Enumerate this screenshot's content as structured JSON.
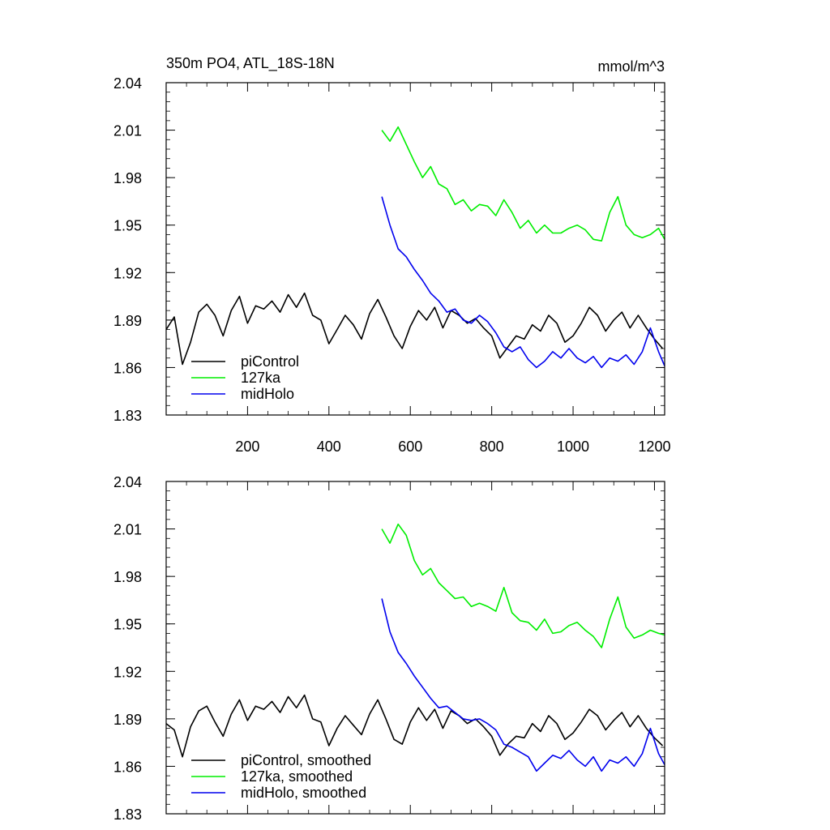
{
  "colors": {
    "piControl": "#000000",
    "127ka": "#00ee00",
    "midHolo": "#0000ee"
  },
  "chart_data": [
    {
      "type": "line",
      "title": "350m PO4, ATL_18S-18N",
      "units_label": "mmol/m^3",
      "xlim": [
        0,
        1225
      ],
      "ylim": [
        1.83,
        2.04
      ],
      "xticks": [
        200,
        400,
        600,
        800,
        1000,
        1200
      ],
      "xtick_labels": [
        "200",
        "400",
        "600",
        "800",
        "1000",
        "1200"
      ],
      "yticks": [
        1.83,
        1.86,
        1.89,
        1.92,
        1.95,
        1.98,
        2.01,
        2.04
      ],
      "ytick_labels": [
        "1.83",
        "1.86",
        "1.89",
        "1.92",
        "1.95",
        "1.98",
        "2.01",
        "2.04"
      ],
      "grid": false,
      "legend_position": "bottom-left",
      "series": [
        {
          "name": "piControl",
          "color_key": "piControl",
          "x": [
            0,
            20,
            40,
            60,
            80,
            100,
            120,
            140,
            160,
            180,
            200,
            220,
            240,
            260,
            280,
            300,
            320,
            340,
            360,
            380,
            400,
            420,
            440,
            460,
            480,
            500,
            520,
            540,
            560,
            580,
            600,
            620,
            640,
            660,
            680,
            700,
            720,
            740,
            760,
            780,
            800,
            820,
            840,
            860,
            880,
            900,
            920,
            940,
            960,
            980,
            1000,
            1020,
            1040,
            1060,
            1080,
            1100,
            1120,
            1140,
            1160,
            1180,
            1200,
            1220
          ],
          "y": [
            1.884,
            1.892,
            1.862,
            1.876,
            1.895,
            1.9,
            1.893,
            1.88,
            1.896,
            1.905,
            1.888,
            1.899,
            1.897,
            1.902,
            1.895,
            1.906,
            1.898,
            1.907,
            1.893,
            1.89,
            1.875,
            1.884,
            1.893,
            1.887,
            1.878,
            1.894,
            1.903,
            1.892,
            1.88,
            1.872,
            1.886,
            1.896,
            1.89,
            1.898,
            1.885,
            1.896,
            1.893,
            1.888,
            1.891,
            1.885,
            1.88,
            1.866,
            1.873,
            1.88,
            1.878,
            1.887,
            1.883,
            1.893,
            1.888,
            1.876,
            1.88,
            1.888,
            1.898,
            1.893,
            1.883,
            1.89,
            1.895,
            1.885,
            1.893,
            1.885,
            1.878,
            1.872
          ]
        },
        {
          "name": "127ka",
          "color_key": "127ka",
          "x": [
            530,
            550,
            570,
            590,
            610,
            630,
            650,
            670,
            690,
            710,
            730,
            750,
            770,
            790,
            810,
            830,
            850,
            870,
            890,
            910,
            930,
            950,
            970,
            990,
            1010,
            1030,
            1050,
            1070,
            1090,
            1110,
            1130,
            1150,
            1170,
            1190,
            1210,
            1225
          ],
          "y": [
            2.01,
            2.003,
            2.012,
            2.001,
            1.99,
            1.98,
            1.987,
            1.976,
            1.973,
            1.963,
            1.966,
            1.959,
            1.963,
            1.962,
            1.956,
            1.966,
            1.958,
            1.948,
            1.953,
            1.945,
            1.95,
            1.945,
            1.945,
            1.948,
            1.95,
            1.947,
            1.941,
            1.94,
            1.958,
            1.968,
            1.95,
            1.944,
            1.942,
            1.944,
            1.948,
            1.941
          ]
        },
        {
          "name": "midHolo",
          "color_key": "midHolo",
          "x": [
            530,
            550,
            570,
            590,
            610,
            630,
            650,
            670,
            690,
            710,
            730,
            750,
            770,
            790,
            810,
            830,
            850,
            870,
            890,
            910,
            930,
            950,
            970,
            990,
            1010,
            1030,
            1050,
            1070,
            1090,
            1110,
            1130,
            1150,
            1170,
            1190,
            1210,
            1225
          ],
          "y": [
            1.968,
            1.95,
            1.935,
            1.93,
            1.922,
            1.915,
            1.907,
            1.902,
            1.895,
            1.897,
            1.89,
            1.888,
            1.893,
            1.889,
            1.882,
            1.873,
            1.87,
            1.873,
            1.865,
            1.86,
            1.864,
            1.87,
            1.866,
            1.872,
            1.866,
            1.863,
            1.867,
            1.86,
            1.866,
            1.864,
            1.868,
            1.862,
            1.87,
            1.885,
            1.87,
            1.861
          ]
        }
      ]
    },
    {
      "type": "line",
      "title": "",
      "units_label": "",
      "xlim": [
        0,
        1225
      ],
      "ylim": [
        1.83,
        2.04
      ],
      "xticks": [
        200,
        400,
        600,
        800,
        1000,
        1200
      ],
      "xtick_labels": [],
      "yticks": [
        1.83,
        1.86,
        1.89,
        1.92,
        1.95,
        1.98,
        2.01,
        2.04
      ],
      "ytick_labels": [
        "1.83",
        "1.86",
        "1.89",
        "1.92",
        "1.95",
        "1.98",
        "2.01",
        "2.04"
      ],
      "grid": false,
      "legend_position": "bottom-left",
      "series": [
        {
          "name": "piControl, smoothed",
          "color_key": "piControl",
          "x": [
            0,
            20,
            40,
            60,
            80,
            100,
            120,
            140,
            160,
            180,
            200,
            220,
            240,
            260,
            280,
            300,
            320,
            340,
            360,
            380,
            400,
            420,
            440,
            460,
            480,
            500,
            520,
            540,
            560,
            580,
            600,
            620,
            640,
            660,
            680,
            700,
            720,
            740,
            760,
            780,
            800,
            820,
            840,
            860,
            880,
            900,
            920,
            940,
            960,
            980,
            1000,
            1020,
            1040,
            1060,
            1080,
            1100,
            1120,
            1140,
            1160,
            1180,
            1200,
            1220
          ],
          "y": [
            1.887,
            1.883,
            1.866,
            1.885,
            1.895,
            1.898,
            1.888,
            1.879,
            1.893,
            1.902,
            1.889,
            1.898,
            1.896,
            1.901,
            1.894,
            1.904,
            1.897,
            1.905,
            1.89,
            1.888,
            1.873,
            1.884,
            1.892,
            1.886,
            1.88,
            1.893,
            1.902,
            1.89,
            1.877,
            1.874,
            1.888,
            1.897,
            1.889,
            1.896,
            1.884,
            1.895,
            1.892,
            1.887,
            1.89,
            1.885,
            1.879,
            1.867,
            1.874,
            1.879,
            1.878,
            1.887,
            1.882,
            1.892,
            1.887,
            1.877,
            1.881,
            1.888,
            1.896,
            1.892,
            1.883,
            1.889,
            1.894,
            1.885,
            1.892,
            1.884,
            1.878,
            1.873
          ]
        },
        {
          "name": "127ka, smoothed",
          "color_key": "127ka",
          "x": [
            530,
            550,
            570,
            590,
            610,
            630,
            650,
            670,
            690,
            710,
            730,
            750,
            770,
            790,
            810,
            830,
            850,
            870,
            890,
            910,
            930,
            950,
            970,
            990,
            1010,
            1030,
            1050,
            1070,
            1090,
            1110,
            1130,
            1150,
            1170,
            1190,
            1210,
            1225
          ],
          "y": [
            2.01,
            2.001,
            2.013,
            2.006,
            1.99,
            1.981,
            1.985,
            1.976,
            1.971,
            1.966,
            1.967,
            1.961,
            1.963,
            1.961,
            1.958,
            1.973,
            1.957,
            1.952,
            1.951,
            1.946,
            1.953,
            1.944,
            1.945,
            1.949,
            1.951,
            1.946,
            1.942,
            1.935,
            1.953,
            1.967,
            1.948,
            1.941,
            1.943,
            1.946,
            1.944,
            1.943
          ]
        },
        {
          "name": "midHolo, smoothed",
          "color_key": "midHolo",
          "x": [
            530,
            550,
            570,
            590,
            610,
            630,
            650,
            670,
            690,
            710,
            730,
            750,
            770,
            790,
            810,
            830,
            850,
            870,
            890,
            910,
            930,
            950,
            970,
            990,
            1010,
            1030,
            1050,
            1070,
            1090,
            1110,
            1130,
            1150,
            1170,
            1190,
            1210,
            1225
          ],
          "y": [
            1.966,
            1.945,
            1.932,
            1.925,
            1.917,
            1.91,
            1.903,
            1.897,
            1.898,
            1.894,
            1.89,
            1.889,
            1.89,
            1.887,
            1.883,
            1.874,
            1.872,
            1.869,
            1.866,
            1.857,
            1.862,
            1.867,
            1.865,
            1.87,
            1.864,
            1.86,
            1.866,
            1.857,
            1.864,
            1.862,
            1.866,
            1.86,
            1.868,
            1.884,
            1.868,
            1.861
          ]
        }
      ]
    }
  ]
}
